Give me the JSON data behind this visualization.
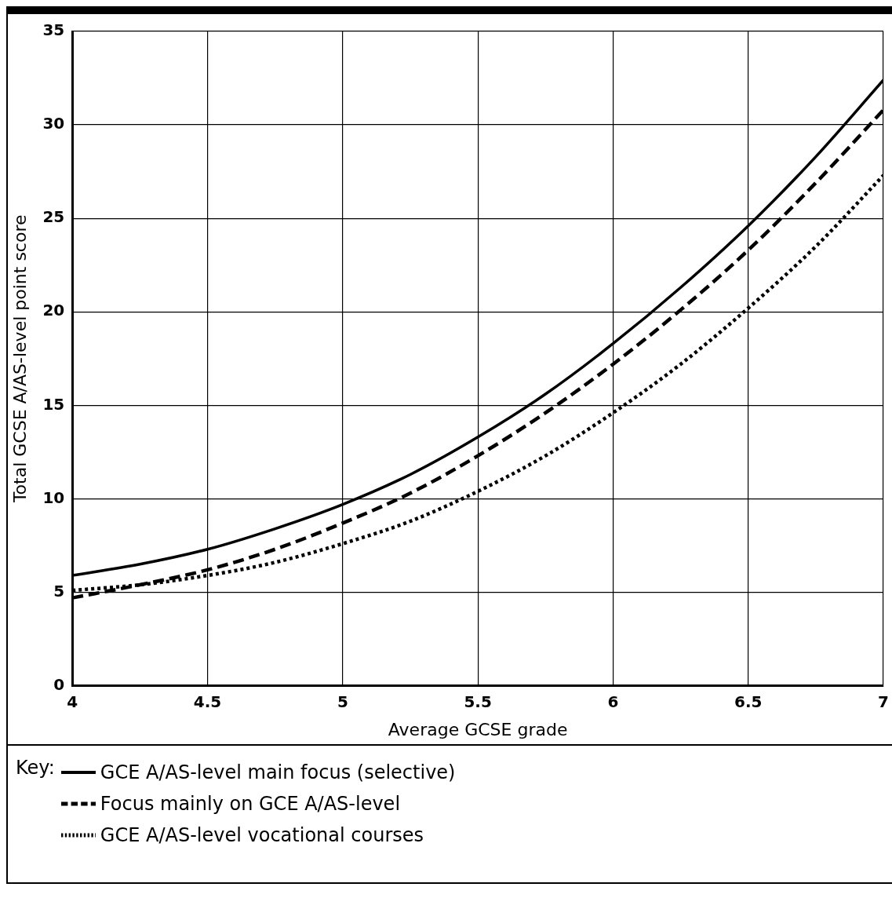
{
  "chart_data": {
    "type": "line",
    "xlabel": "Average GCSE grade",
    "ylabel": "Total GCSE A/AS-level point score",
    "legend_title": "Key:",
    "legend": "bottom left",
    "grid": true,
    "marker": "none",
    "x": [
      4,
      4.25,
      4.5,
      4.75,
      5,
      5.25,
      5.5,
      5.75,
      6,
      6.25,
      6.5,
      6.75,
      7
    ],
    "xlim": [
      4,
      7
    ],
    "xticks": [
      4,
      4.5,
      5,
      5.5,
      6,
      6.5,
      7
    ],
    "ylim": [
      0,
      35
    ],
    "yticks": [
      0,
      5,
      10,
      15,
      20,
      25,
      30,
      35
    ],
    "series": [
      {
        "name": "GCE A/AS-level main focus (selective)",
        "color": "#000000",
        "line_style": "solid",
        "values": [
          5.9,
          6.5,
          7.3,
          8.4,
          9.7,
          11.3,
          13.3,
          15.6,
          18.3,
          21.3,
          24.6,
          28.3,
          32.4
        ]
      },
      {
        "name": "Focus mainly on GCE A/AS-level",
        "color": "#000000",
        "line_style": "dashed",
        "values": [
          4.7,
          5.4,
          6.2,
          7.3,
          8.7,
          10.3,
          12.3,
          14.6,
          17.2,
          20.1,
          23.3,
          26.9,
          30.8
        ]
      },
      {
        "name": "GCE A/AS-level vocational courses",
        "color": "#000000",
        "line_style": "dotted",
        "values": [
          5.1,
          5.4,
          5.9,
          6.6,
          7.6,
          8.8,
          10.4,
          12.3,
          14.6,
          17.2,
          20.2,
          23.5,
          27.3
        ]
      }
    ]
  }
}
